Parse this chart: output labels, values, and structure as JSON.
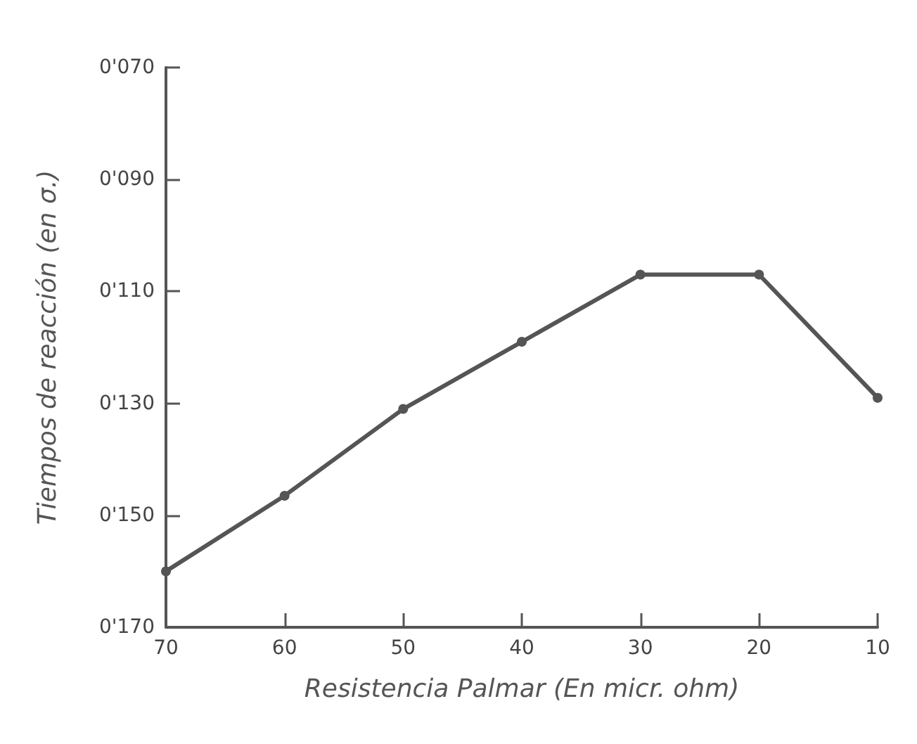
{
  "chart_data": {
    "type": "line",
    "xlabel": "Resistencia Palmar (En micr. ohm)",
    "ylabel": "Tiempos de reacción (en σ.)",
    "x": [
      70,
      60,
      50,
      40,
      30,
      20,
      10
    ],
    "series": [
      {
        "color": "#555555",
        "values": [
          160,
          146.5,
          131,
          119,
          107,
          107,
          129
        ]
      }
    ],
    "xlim": [
      70,
      10
    ],
    "xticks": [
      70,
      60,
      50,
      40,
      30,
      20,
      10
    ],
    "ylim": [
      170,
      70
    ],
    "yticks": [
      {
        "value": 70,
        "label": "0'070"
      },
      {
        "value": 90,
        "label": "0'090"
      },
      {
        "value": 110,
        "label": "0'110"
      },
      {
        "value": 130,
        "label": "0'130"
      },
      {
        "value": 150,
        "label": "0'150"
      },
      {
        "value": 170,
        "label": "0'170"
      }
    ],
    "grid": false,
    "marker": "circle",
    "line_style": "solid"
  }
}
